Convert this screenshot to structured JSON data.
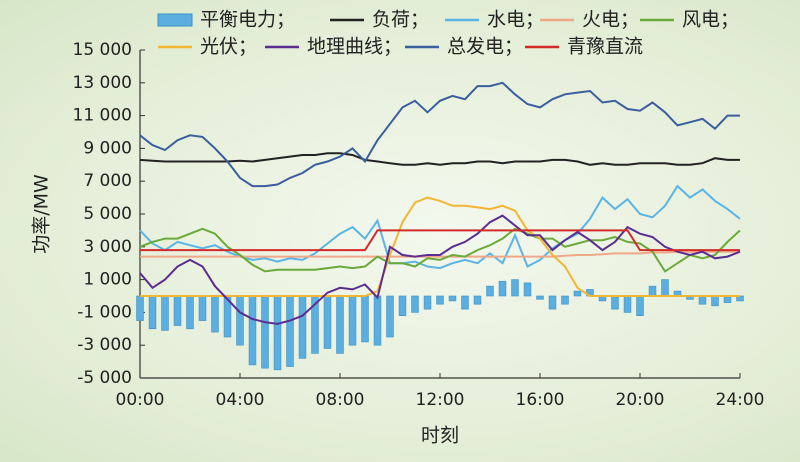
{
  "chart_data": {
    "type": "bar-line",
    "ylabel": "功率/MW",
    "xlabel": "时刻",
    "x": [
      0,
      0.5,
      1,
      1.5,
      2,
      2.5,
      3,
      3.5,
      4,
      4.5,
      5,
      5.5,
      6,
      6.5,
      7,
      7.5,
      8,
      8.5,
      9,
      9.5,
      10,
      10.5,
      11,
      11.5,
      12,
      12.5,
      13,
      13.5,
      14,
      14.5,
      15,
      15.5,
      16,
      16.5,
      17,
      17.5,
      18,
      18.5,
      19,
      19.5,
      20,
      20.5,
      21,
      21.5,
      22,
      22.5,
      23,
      23.5,
      24
    ],
    "xlim": [
      0,
      24
    ],
    "xticks": [
      {
        "value": 0,
        "label": "00:00"
      },
      {
        "value": 4,
        "label": "04:00"
      },
      {
        "value": 8,
        "label": "08:00"
      },
      {
        "value": 12,
        "label": "12:00"
      },
      {
        "value": 16,
        "label": "16:00"
      },
      {
        "value": 20,
        "label": "20:00"
      },
      {
        "value": 24,
        "label": "24:00"
      }
    ],
    "ylim": [
      -5000,
      15000
    ],
    "yticks": [
      {
        "value": -5000,
        "label": "-5 000"
      },
      {
        "value": -3000,
        "label": "-3 000"
      },
      {
        "value": -1000,
        "label": "-1 000"
      },
      {
        "value": 1000,
        "label": "1 000"
      },
      {
        "value": 3000,
        "label": "3 000"
      },
      {
        "value": 5000,
        "label": "5 000"
      },
      {
        "value": 7000,
        "label": "7 000"
      },
      {
        "value": 9000,
        "label": "9 000"
      },
      {
        "value": 11000,
        "label": "11 000"
      },
      {
        "value": 13000,
        "label": "13 000"
      },
      {
        "value": 15000,
        "label": "15 000"
      }
    ],
    "series": [
      {
        "name": "平衡电力；",
        "kind": "bar",
        "color": "#5aafe0",
        "values": [
          -1500,
          -2000,
          -2100,
          -1800,
          -2000,
          -1500,
          -2200,
          -2500,
          -3000,
          -4200,
          -4400,
          -4500,
          -4300,
          -3800,
          -3500,
          -3200,
          -3500,
          -3000,
          -2800,
          -3000,
          -2500,
          -1200,
          -1000,
          -800,
          -500,
          -300,
          -800,
          -500,
          600,
          900,
          1000,
          800,
          -200,
          -800,
          -500,
          300,
          400,
          -300,
          -800,
          -1000,
          -1200,
          600,
          1000,
          300,
          -200,
          -500,
          -600,
          -400,
          -300
        ]
      },
      {
        "name": "负荷；",
        "kind": "line",
        "color": "#222222",
        "values": [
          8300,
          8250,
          8200,
          8200,
          8200,
          8200,
          8200,
          8200,
          8250,
          8200,
          8300,
          8400,
          8500,
          8600,
          8600,
          8700,
          8700,
          8600,
          8300,
          8200,
          8100,
          8000,
          8000,
          8100,
          8000,
          8100,
          8100,
          8200,
          8200,
          8100,
          8200,
          8200,
          8200,
          8300,
          8300,
          8200,
          8000,
          8100,
          8000,
          8000,
          8100,
          8100,
          8100,
          8000,
          8000,
          8100,
          8400,
          8300,
          8300
        ]
      },
      {
        "name": "水电；",
        "kind": "line",
        "color": "#5ab4e6",
        "values": [
          4000,
          3200,
          2800,
          3300,
          3100,
          2900,
          3100,
          2700,
          2400,
          2200,
          2300,
          2100,
          2300,
          2200,
          2600,
          3200,
          3800,
          4200,
          3500,
          4600,
          2000,
          2000,
          2100,
          1800,
          1700,
          2000,
          2200,
          2000,
          2600,
          2000,
          3700,
          1800,
          2200,
          2900,
          3400,
          3800,
          4700,
          6000,
          5300,
          5900,
          5000,
          4800,
          5500,
          6700,
          6000,
          6500,
          5800,
          5300,
          4700
        ]
      },
      {
        "name": "火电；",
        "kind": "line",
        "color": "#f0a888",
        "values": [
          2400,
          2400,
          2400,
          2400,
          2400,
          2400,
          2400,
          2400,
          2400,
          2400,
          2400,
          2400,
          2400,
          2400,
          2400,
          2400,
          2400,
          2400,
          2400,
          2400,
          2400,
          2400,
          2400,
          2400,
          2400,
          2400,
          2400,
          2400,
          2400,
          2400,
          2400,
          2400,
          2400,
          2400,
          2450,
          2500,
          2500,
          2550,
          2600,
          2600,
          2600,
          2650,
          2650,
          2700,
          2700,
          2700,
          2700,
          2700,
          2700
        ]
      },
      {
        "name": "风电；",
        "kind": "line",
        "color": "#6aaa3a",
        "values": [
          3000,
          3300,
          3500,
          3500,
          3800,
          4100,
          3800,
          3000,
          2500,
          1900,
          1500,
          1600,
          1600,
          1600,
          1600,
          1700,
          1800,
          1700,
          1800,
          2400,
          2000,
          2000,
          1800,
          2300,
          2200,
          2500,
          2400,
          2800,
          3100,
          3500,
          4100,
          3800,
          3500,
          3500,
          3000,
          3200,
          3400,
          3400,
          3600,
          3300,
          3200,
          2700,
          1500,
          2000,
          2500,
          2300,
          2500,
          3300,
          4000
        ]
      },
      {
        "name": "光伏；",
        "kind": "line",
        "color": "#f2b632",
        "values": [
          0,
          0,
          0,
          0,
          0,
          0,
          0,
          0,
          0,
          0,
          0,
          0,
          0,
          0,
          0,
          0,
          0,
          0,
          0,
          300,
          2500,
          4500,
          5700,
          6000,
          5800,
          5500,
          5500,
          5400,
          5300,
          5500,
          5200,
          4000,
          3500,
          2500,
          1800,
          500,
          0,
          0,
          0,
          0,
          0,
          0,
          0,
          0,
          0,
          0,
          0,
          0,
          0
        ]
      },
      {
        "name": "地理曲线；",
        "kind": "line",
        "color": "#5b2d90",
        "values": [
          1400,
          500,
          1000,
          1800,
          2200,
          1800,
          600,
          -200,
          -1000,
          -1400,
          -1600,
          -1700,
          -1500,
          -1200,
          -500,
          200,
          500,
          400,
          700,
          -100,
          3000,
          2500,
          2400,
          2500,
          2500,
          3000,
          3300,
          3800,
          4500,
          4900,
          4300,
          3700,
          3700,
          2800,
          3400,
          3900,
          3400,
          2800,
          3300,
          4200,
          3800,
          3600,
          3000,
          2700,
          2500,
          2700,
          2300,
          2400,
          2700
        ]
      },
      {
        "name": "总发电；",
        "kind": "line",
        "color": "#3a5f9e",
        "values": [
          9800,
          9200,
          8900,
          9500,
          9800,
          9700,
          9000,
          8200,
          7200,
          6700,
          6700,
          6800,
          7200,
          7500,
          8000,
          8200,
          8500,
          9000,
          8200,
          9500,
          10500,
          11500,
          11900,
          11200,
          11900,
          12200,
          12000,
          12800,
          12800,
          13000,
          12300,
          11700,
          11500,
          12000,
          12300,
          12400,
          12500,
          11800,
          11900,
          11400,
          11300,
          11800,
          11200,
          10400,
          10600,
          10800,
          10200,
          11000,
          11000
        ]
      },
      {
        "name": "青豫直流",
        "kind": "line",
        "color": "#d42a2a",
        "values": [
          2800,
          2800,
          2800,
          2800,
          2800,
          2800,
          2800,
          2800,
          2800,
          2800,
          2800,
          2800,
          2800,
          2800,
          2800,
          2800,
          2800,
          2800,
          2800,
          4000,
          4000,
          4000,
          4000,
          4000,
          4000,
          4000,
          4000,
          4000,
          4000,
          4000,
          4000,
          4000,
          4000,
          4000,
          4000,
          4000,
          4000,
          4000,
          4000,
          4000,
          2800,
          2800,
          2800,
          2800,
          2800,
          2800,
          2800,
          2800,
          2800
        ]
      }
    ]
  }
}
